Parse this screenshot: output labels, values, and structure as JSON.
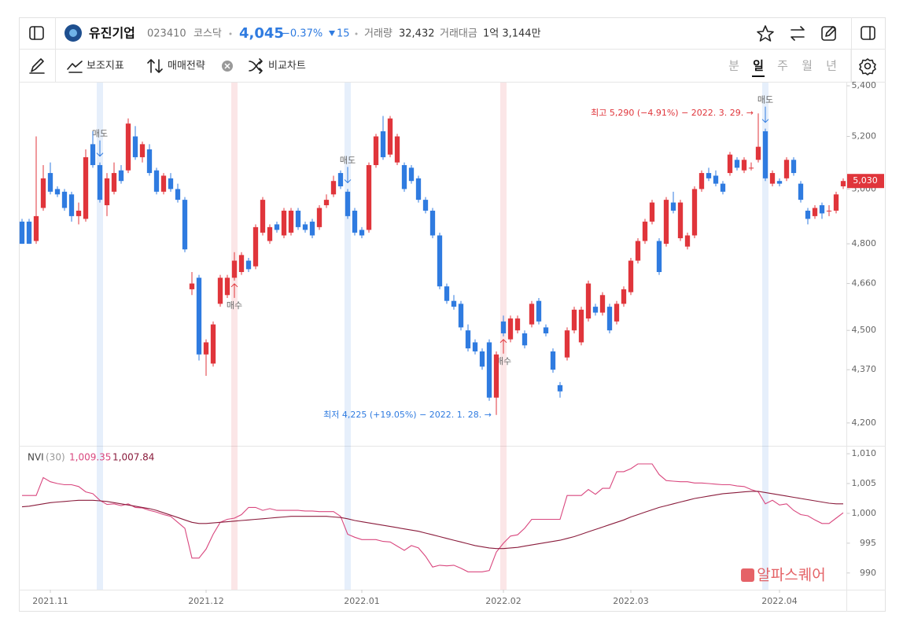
{
  "header": {
    "name": "유진기업",
    "code": "023410",
    "market": "코스닥",
    "price": "4,045",
    "change_pct": "−0.37%",
    "change": "15",
    "volume_label": "거래량",
    "volume": "32,432",
    "amount_label": "거래대금",
    "amount": "1억 3,144만"
  },
  "toolbar": {
    "indicators": "보조지표",
    "strategy": "매매전략",
    "compare": "비교차트",
    "periods": [
      "분",
      "일",
      "주",
      "월",
      "년"
    ],
    "selected_period": 1
  },
  "watermark": "알파스퀘어",
  "chart_data": [
    {
      "type": "candlestick",
      "log_scale": true,
      "up_color": "#e0353b",
      "down_color": "#2f7be0",
      "xlim": [
        -0.5,
        116.5
      ],
      "ylim": [
        4129,
        5413
      ],
      "xticks": [
        {
          "value": 4,
          "label": "2021.11"
        },
        {
          "value": 26,
          "label": "2021.12"
        },
        {
          "value": 48,
          "label": "2022.01"
        },
        {
          "value": 68,
          "label": "2022.02"
        },
        {
          "value": 86,
          "label": "2022.03"
        },
        {
          "value": 107,
          "label": "2022.04"
        }
      ],
      "yticks": [
        {
          "value": 5400,
          "label": "5,400"
        },
        {
          "value": 5200,
          "label": "5,200"
        },
        {
          "value": 5000,
          "label": "5,000"
        },
        {
          "value": 4800,
          "label": "4,800"
        },
        {
          "value": 4660,
          "label": "4,660"
        },
        {
          "value": 4500,
          "label": "4,500"
        },
        {
          "value": 4370,
          "label": "4,370"
        },
        {
          "value": 4200,
          "label": "4,200"
        }
      ],
      "open": [
        4880,
        4880,
        4810,
        4930,
        5060,
        5000,
        4990,
        4980,
        4900,
        4890,
        5170,
        5090,
        4940,
        4990,
        5070,
        5070,
        5200,
        5120,
        5150,
        5070,
        4990,
        5040,
        5000,
        4960,
        4640,
        4680,
        4420,
        4390,
        4590,
        4620,
        4680,
        4700,
        4740,
        4720,
        4840,
        4810,
        4870,
        4830,
        4840,
        4920,
        4870,
        4880,
        4860,
        4940,
        4980,
        5060,
        4990,
        4920,
        4850,
        4850,
        5090,
        5220,
        5130,
        5100,
        5090,
        5080,
        5040,
        4960,
        4920,
        4830,
        4650,
        4600,
        4590,
        4500,
        4460,
        4430,
        4460,
        4280,
        4530,
        4470,
        4500,
        4490,
        4520,
        4600,
        4510,
        4430,
        4320,
        4410,
        4500,
        4460,
        4540,
        4580,
        4560,
        4580,
        4530,
        4590,
        4630,
        4740,
        4810,
        4880,
        4810,
        4800,
        4950,
        4820,
        4790,
        4830,
        5000,
        5060,
        5050,
        5020,
        5060,
        5110,
        5070,
        5080,
        5110,
        5220,
        5020,
        5030,
        5040,
        5110,
        5020,
        4920,
        4900,
        4940,
        4920,
        4920,
        5010
      ],
      "high": [
        4890,
        4890,
        5200,
        5090,
        5100,
        5010,
        5000,
        4990,
        4950,
        5150,
        5220,
        5100,
        5060,
        5100,
        5090,
        5270,
        5240,
        5180,
        5170,
        5080,
        5060,
        5060,
        5020,
        4970,
        4700,
        4690,
        4470,
        4530,
        4690,
        4690,
        4770,
        4770,
        4750,
        4870,
        4970,
        4870,
        4880,
        4930,
        4930,
        4930,
        4880,
        4890,
        4940,
        4980,
        5050,
        5070,
        5000,
        4930,
        4860,
        5100,
        5210,
        5280,
        5280,
        5210,
        5100,
        5090,
        5050,
        4970,
        4930,
        4840,
        4660,
        4620,
        4600,
        4520,
        4470,
        4440,
        4470,
        4430,
        4550,
        4550,
        4550,
        4500,
        4600,
        4610,
        4520,
        4440,
        4330,
        4510,
        4580,
        4580,
        4670,
        4590,
        4630,
        4590,
        4600,
        4650,
        4750,
        4820,
        4890,
        4960,
        4820,
        4970,
        4990,
        4960,
        4840,
        5010,
        5070,
        5080,
        5070,
        5030,
        5140,
        5120,
        5120,
        5100,
        5290,
        5230,
        5070,
        5040,
        5120,
        5120,
        5030,
        4930,
        4940,
        4950,
        4940,
        4990,
        5040
      ],
      "low": [
        4800,
        4800,
        4800,
        4920,
        4980,
        4970,
        4920,
        4880,
        4870,
        4880,
        5080,
        4950,
        4900,
        4980,
        5020,
        5060,
        5110,
        5100,
        5050,
        4980,
        4980,
        4990,
        4950,
        4770,
        4620,
        4400,
        4350,
        4380,
        4580,
        4610,
        4670,
        4690,
        4700,
        4710,
        4830,
        4800,
        4840,
        4820,
        4830,
        4850,
        4840,
        4820,
        4850,
        4930,
        4970,
        5000,
        4890,
        4830,
        4820,
        4840,
        5080,
        5110,
        5120,
        5090,
        4990,
        5020,
        4950,
        4910,
        4820,
        4640,
        4590,
        4570,
        4500,
        4430,
        4420,
        4370,
        4270,
        4225,
        4480,
        4460,
        4490,
        4440,
        4510,
        4520,
        4480,
        4360,
        4280,
        4400,
        4490,
        4450,
        4530,
        4550,
        4550,
        4490,
        4520,
        4580,
        4620,
        4730,
        4800,
        4870,
        4690,
        4790,
        4910,
        4810,
        4780,
        4820,
        4990,
        5030,
        5010,
        4980,
        5050,
        5070,
        5060,
        5070,
        5100,
        5030,
        5010,
        5010,
        5030,
        5050,
        4950,
        4870,
        4890,
        4890,
        4900,
        4910,
        5000
      ],
      "close": [
        4800,
        4800,
        4900,
        5040,
        4990,
        4980,
        4930,
        4900,
        4920,
        5120,
        5090,
        4960,
        5040,
        5060,
        5030,
        5250,
        5120,
        5170,
        5060,
        4990,
        5050,
        5000,
        4960,
        4780,
        4660,
        4420,
        4460,
        4520,
        4680,
        4680,
        4740,
        4760,
        4710,
        4860,
        4960,
        4860,
        4850,
        4920,
        4920,
        4860,
        4850,
        4830,
        4930,
        4960,
        5030,
        5010,
        4900,
        4840,
        4830,
        5090,
        5200,
        5120,
        5270,
        5200,
        5000,
        5030,
        4960,
        4920,
        4830,
        4650,
        4600,
        4580,
        4510,
        4440,
        4430,
        4380,
        4280,
        4420,
        4490,
        4540,
        4540,
        4450,
        4590,
        4530,
        4490,
        4370,
        4300,
        4500,
        4570,
        4570,
        4660,
        4560,
        4620,
        4500,
        4590,
        4640,
        4740,
        4810,
        4880,
        4950,
        4700,
        4960,
        4920,
        4950,
        4830,
        5000,
        5060,
        5040,
        5020,
        4990,
        5130,
        5080,
        5110,
        5080,
        5160,
        5040,
        5060,
        5020,
        5110,
        5060,
        4960,
        4890,
        4930,
        4910,
        4920,
        4980,
        5030
      ],
      "signals": [
        {
          "x": 11,
          "label": "매도",
          "color": "#2f7be0"
        },
        {
          "x": 30,
          "label": "매수",
          "color": "#e0353b"
        },
        {
          "x": 46,
          "label": "매도",
          "color": "#2f7be0"
        },
        {
          "x": 68,
          "label": "매수",
          "color": "#e0353b"
        },
        {
          "x": 105,
          "label": "매도",
          "color": "#2f7be0"
        }
      ],
      "annotations": [
        {
          "text": "최고 5,290 (−4.91%) − 2022. 3. 29. →",
          "x": 104,
          "y": 5290,
          "color": "#e0353b"
        },
        {
          "text": "최저 4,225 (+19.05%) − 2022. 1. 28. →",
          "x": 67,
          "y": 4225,
          "color": "#2f7be0"
        }
      ],
      "last_price": {
        "value": 5030,
        "label": "5,030"
      }
    },
    {
      "type": "line",
      "title": "NVI",
      "period": "(30)",
      "xlim": [
        -0.5,
        116.5
      ],
      "ylim": [
        987.2,
        1011.2
      ],
      "yticks": [
        {
          "value": 1010,
          "label": "1,010"
        },
        {
          "value": 1005,
          "label": "1,005"
        },
        {
          "value": 1000,
          "label": "1,000"
        },
        995,
        990
      ],
      "series": [
        {
          "legend_label": "1,009.35",
          "color": "#d9477e",
          "values": [
            1003.0,
            1003.0,
            1003.0,
            1006.0,
            1005.3,
            1005.0,
            1004.8,
            1004.8,
            1004.5,
            1003.6,
            1003.3,
            1002.2,
            1001.5,
            1001.6,
            1001.3,
            1001.6,
            1001.0,
            1000.9,
            1000.5,
            1000.2,
            999.8,
            999.5,
            998.5,
            997.5,
            992.5,
            992.5,
            994.0,
            996.5,
            998.5,
            999.0,
            999.2,
            999.8,
            1001.0,
            1001.0,
            1000.5,
            1000.8,
            1000.5,
            1000.5,
            1000.5,
            1000.5,
            1000.4,
            1000.4,
            1000.3,
            1000.3,
            1000.3,
            999.5,
            996.5,
            996.0,
            995.6,
            995.6,
            995.6,
            995.3,
            995.2,
            994.5,
            993.8,
            994.6,
            994.2,
            992.8,
            991.0,
            991.3,
            991.2,
            991.3,
            990.8,
            990.2,
            990.2,
            990.2,
            990.4,
            993.5,
            995.0,
            996.2,
            996.4,
            997.5,
            999.0,
            999.0,
            999.0,
            999.0,
            999.0,
            1003.0,
            1003.0,
            1003.0,
            1004.0,
            1003.2,
            1004.2,
            1004.2,
            1007.0,
            1007.0,
            1007.5,
            1008.3,
            1008.3,
            1008.3,
            1006.5,
            1005.5,
            1005.4,
            1005.3,
            1005.3,
            1005.1,
            1005.1,
            1005.0,
            1004.9,
            1004.8,
            1004.8,
            1004.6,
            1004.5,
            1004.0,
            1003.6,
            1001.6,
            1002.2,
            1001.4,
            1001.6,
            1000.5,
            999.8,
            999.6,
            998.9,
            998.3,
            998.3,
            999.2,
            1000.1
          ]
        },
        {
          "legend_label": "1,007.84",
          "color": "#8a1c3c",
          "values": [
            1001.1,
            1001.2,
            1001.4,
            1001.6,
            1001.8,
            1001.9,
            1002.0,
            1002.1,
            1002.2,
            1002.2,
            1002.2,
            1002.1,
            1002.0,
            1001.8,
            1001.6,
            1001.4,
            1001.2,
            1001.0,
            1000.8,
            1000.5,
            1000.1,
            999.7,
            999.3,
            998.9,
            998.5,
            998.3,
            998.3,
            998.4,
            998.5,
            998.6,
            998.7,
            998.8,
            998.9,
            999.0,
            999.1,
            999.2,
            999.3,
            999.4,
            999.5,
            999.5,
            999.5,
            999.5,
            999.5,
            999.5,
            999.4,
            999.3,
            999.1,
            998.8,
            998.6,
            998.4,
            998.2,
            998.0,
            997.8,
            997.6,
            997.4,
            997.2,
            997.0,
            996.7,
            996.4,
            996.1,
            995.8,
            995.5,
            995.2,
            994.9,
            994.6,
            994.4,
            994.2,
            994.1,
            994.1,
            994.2,
            994.3,
            994.5,
            994.7,
            994.9,
            995.1,
            995.3,
            995.5,
            995.8,
            996.1,
            996.5,
            996.9,
            997.3,
            997.7,
            998.1,
            998.5,
            998.9,
            999.4,
            999.8,
            1000.2,
            1000.6,
            1001.0,
            1001.3,
            1001.6,
            1001.9,
            1002.2,
            1002.5,
            1002.7,
            1002.9,
            1003.1,
            1003.3,
            1003.4,
            1003.5,
            1003.6,
            1003.7,
            1003.7,
            1003.5,
            1003.3,
            1003.1,
            1002.9,
            1002.7,
            1002.5,
            1002.3,
            1002.1,
            1001.9,
            1001.7,
            1001.6,
            1001.6
          ]
        }
      ]
    }
  ]
}
